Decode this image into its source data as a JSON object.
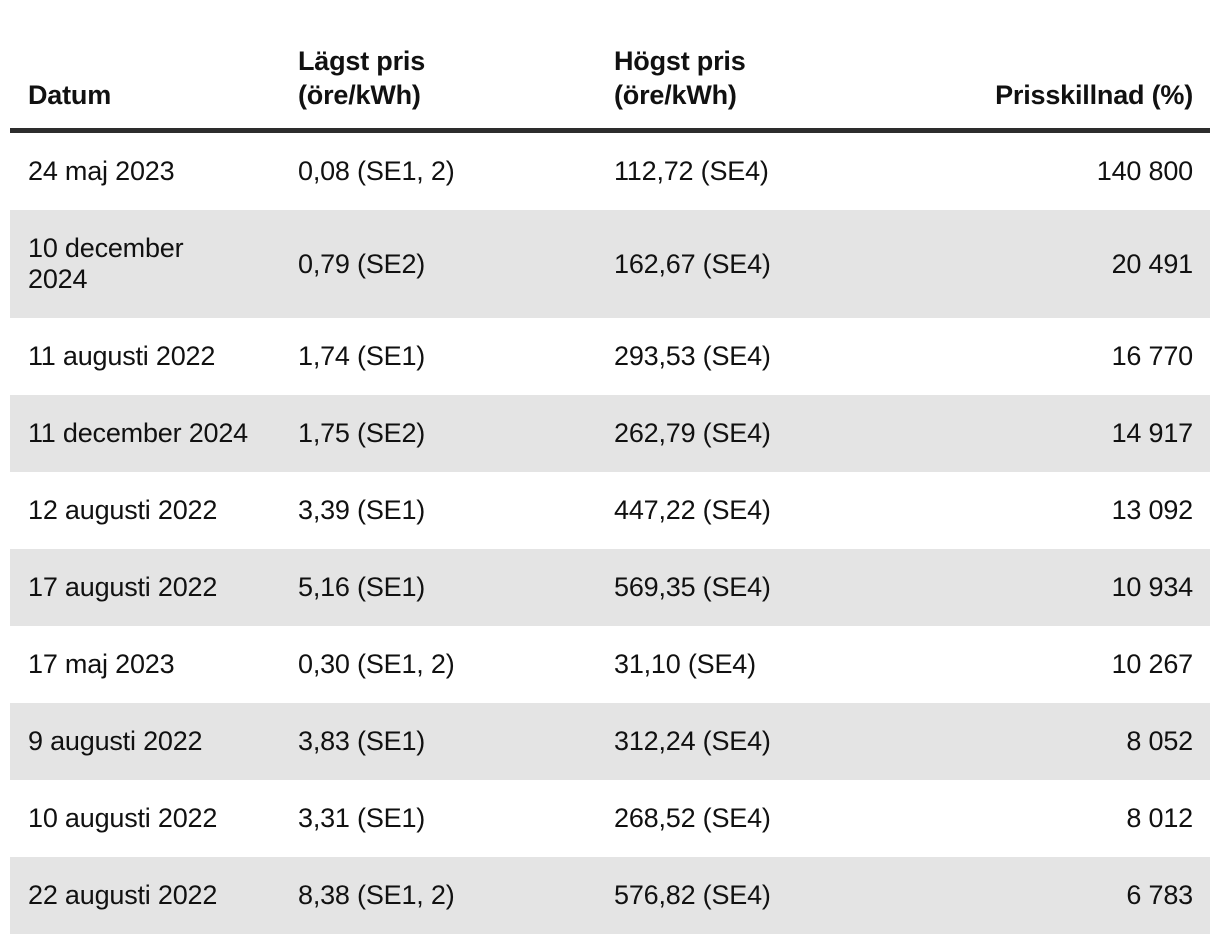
{
  "colors": {
    "text": "#111111",
    "row_alt_bg": "#e4e4e4",
    "header_border": "#2d2d2d"
  },
  "chart_data": {
    "type": "table",
    "title": "",
    "columns": [
      "Datum",
      "Lägst pris\n(öre/kWh)",
      "Högst pris\n(öre/kWh)",
      "Prisskillnad (%)"
    ],
    "rows": [
      [
        "24 maj 2023",
        "0,08 (SE1, 2)",
        "112,72 (SE4)",
        "140 800"
      ],
      [
        "10 december\n2024",
        "0,79 (SE2)",
        "162,67 (SE4)",
        "20 491"
      ],
      [
        "11 augusti 2022",
        "1,74 (SE1)",
        "293,53 (SE4)",
        "16 770"
      ],
      [
        "11 december 2024",
        "1,75 (SE2)",
        "262,79 (SE4)",
        "14 917"
      ],
      [
        "12 augusti 2022",
        "3,39 (SE1)",
        "447,22 (SE4)",
        "13 092"
      ],
      [
        "17 augusti 2022",
        "5,16 (SE1)",
        "569,35 (SE4)",
        "10 934"
      ],
      [
        "17 maj 2023",
        "0,30 (SE1, 2)",
        "31,10 (SE4)",
        "10 267"
      ],
      [
        "9 augusti 2022",
        "3,83 (SE1)",
        "312,24 (SE4)",
        "8 052"
      ],
      [
        "10 augusti 2022",
        "3,31 (SE1)",
        "268,52 (SE4)",
        "8 012"
      ],
      [
        "22 augusti 2022",
        "8,38 (SE1, 2)",
        "576,82 (SE4)",
        "6 783"
      ]
    ]
  }
}
